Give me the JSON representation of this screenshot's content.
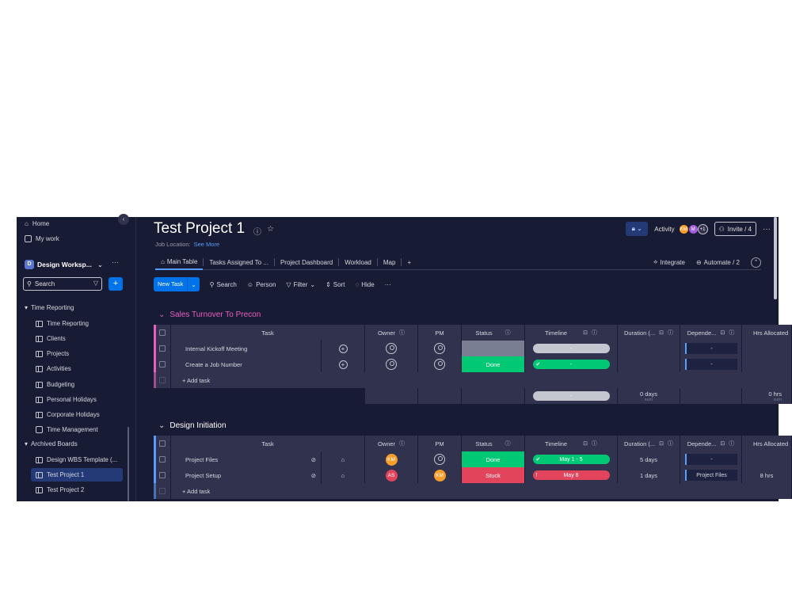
{
  "sidebar": {
    "home": "Home",
    "my_work": "My work",
    "workspace_name": "Design Worksp...",
    "workspace_initial": "D",
    "search_placeholder": "Search",
    "time_reporting_folder": "Time Reporting",
    "time_reporting_items": [
      "Time Reporting",
      "Clients",
      "Projects",
      "Activities",
      "Budgeting",
      "Personal Holidays",
      "Corporate Holidays",
      "Time Management"
    ],
    "archived_folder": "Archived Boards",
    "archived_items": [
      "Design WBS Template (...",
      "Test Project 1",
      "Test Project 2"
    ],
    "active_item": "Test Project 1"
  },
  "header": {
    "title": "Test Project 1",
    "location_label": "Job Location:",
    "see_more": "See More",
    "activity": "Activity",
    "avatars": [
      {
        "initials": "KM",
        "color": "#f59e2b"
      },
      {
        "initials": "M",
        "color": "#a25ddc"
      }
    ],
    "avatar_extra": "+1",
    "invite": "Invite / 4"
  },
  "tabs": {
    "items": [
      "Main Table",
      "Tasks Assigned To ...",
      "Project Dashboard",
      "Workload",
      "Map"
    ],
    "add": "+",
    "integrate": "Integrate",
    "automate": "Automate / 2"
  },
  "toolbar": {
    "new_task": "New Task",
    "search": "Search",
    "person": "Person",
    "filter": "Filter",
    "sort": "Sort",
    "hide": "Hide",
    "more": "···"
  },
  "columns": {
    "task": "Task",
    "owner": "Owner",
    "pm": "PM",
    "status": "Status",
    "timeline": "Timeline",
    "duration": "Duration (...",
    "dependent": "Depende...",
    "hrs": "Hrs Allocated"
  },
  "groups": [
    {
      "title": "Sales Turnover To Precon",
      "color": "#e95ec0",
      "add_task": "+ Add task",
      "rows": [
        {
          "task": "Internal Kickoff Meeting",
          "status": "",
          "status_color": "#797e93",
          "timeline": "-",
          "timeline_color": "#c5c7d0",
          "dep": "-"
        },
        {
          "task": "Create a Job Number",
          "status": "Done",
          "status_color": "#00c875",
          "timeline": "-",
          "timeline_color": "#00c875",
          "dep": "-"
        }
      ],
      "summary": {
        "timeline": "-",
        "duration": "0 days",
        "duration_sub": "sum",
        "hrs": "0 hrs",
        "hrs_sub": "sum"
      }
    },
    {
      "title": "Design Initiation",
      "color": "#579bfc",
      "add_task": "+ Add task",
      "rows": [
        {
          "task": "Project Files",
          "owner": "KM",
          "owner_color": "#f59e2b",
          "pm": "",
          "status": "Done",
          "status_color": "#00c875",
          "timeline": "May 1 - 5",
          "timeline_color": "#00c875",
          "duration": "5 days",
          "dep": "-",
          "hrs": ""
        },
        {
          "task": "Project Setup",
          "owner": "AS",
          "owner_color": "#e2445c",
          "pm": "KM",
          "pm_color": "#f59e2b",
          "status": "Stuck",
          "status_color": "#e2445c",
          "timeline": "May 8",
          "timeline_color": "#e2445c",
          "duration": "1 days",
          "dep": "Project Files",
          "hrs": "8 hrs"
        }
      ]
    }
  ]
}
